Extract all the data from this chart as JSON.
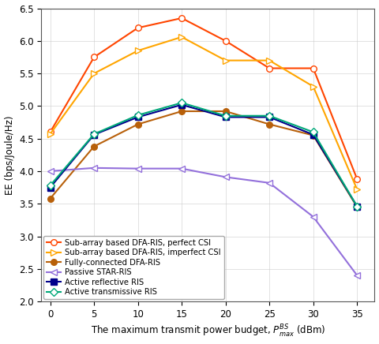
{
  "x": [
    0,
    5,
    10,
    15,
    20,
    25,
    30,
    35
  ],
  "series": [
    {
      "label": "Sub-array based DFA-RIS, perfect CSI",
      "color": "#FF4500",
      "marker": "o",
      "markerfacecolor": "white",
      "y": [
        4.6,
        5.75,
        6.2,
        6.35,
        6.0,
        5.58,
        5.58,
        3.88
      ]
    },
    {
      "label": "Sub-array based DFA-RIS, imperfect CSI",
      "color": "#FFA500",
      "marker": ">",
      "markerfacecolor": "white",
      "y": [
        4.57,
        5.5,
        5.85,
        6.06,
        5.7,
        5.7,
        5.3,
        3.72
      ]
    },
    {
      "label": "Fully-connected DFA-RIS",
      "color": "#B8600A",
      "marker": "o",
      "markerfacecolor": "#B8600A",
      "y": [
        3.58,
        4.38,
        4.72,
        4.92,
        4.92,
        4.72,
        4.55,
        3.45
      ]
    },
    {
      "label": "Passive STAR-RIS",
      "color": "#9370DB",
      "marker": "<",
      "markerfacecolor": "white",
      "y": [
        4.0,
        4.05,
        4.04,
        4.04,
        3.91,
        3.82,
        3.3,
        2.4
      ]
    },
    {
      "label": "Active reflective RIS",
      "color": "#00008B",
      "marker": "s",
      "markerfacecolor": "#00008B",
      "y": [
        3.75,
        4.56,
        4.83,
        5.02,
        4.83,
        4.83,
        4.56,
        3.46
      ]
    },
    {
      "label": "Active transmissive RIS",
      "color": "#00A878",
      "marker": "D",
      "markerfacecolor": "white",
      "y": [
        3.78,
        4.57,
        4.86,
        5.05,
        4.85,
        4.85,
        4.6,
        3.46
      ]
    }
  ],
  "xlabel": "The maximum transmit power budget, $P_{max}^{BS}$ (dBm)",
  "ylabel": "EE (bps/Joule/Hz)",
  "ylim": [
    2.0,
    6.5
  ],
  "yticks": [
    2.0,
    2.5,
    3.0,
    3.5,
    4.0,
    4.5,
    5.0,
    5.5,
    6.0,
    6.5
  ],
  "xticks": [
    0,
    5,
    10,
    15,
    20,
    25,
    30,
    35
  ],
  "figsize": [
    4.8,
    4.36
  ],
  "dpi": 100
}
